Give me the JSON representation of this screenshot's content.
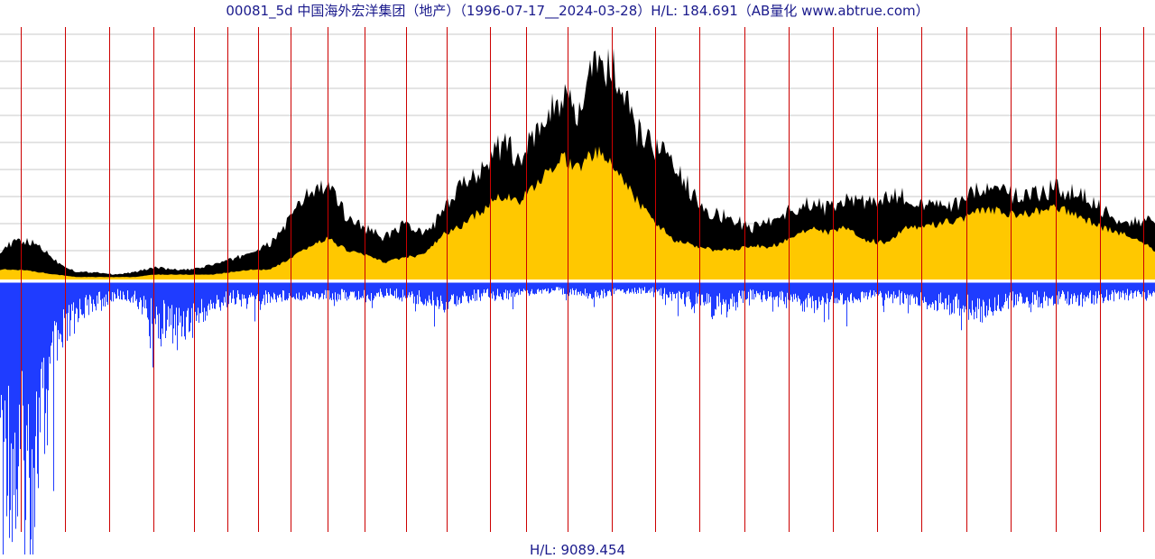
{
  "title": "00081_5d 中国海外宏洋集团（地产）（1996-07-17__2024-03-28）H/L: 184.691（AB量化  www.abtrue.com）",
  "bottom_label": "H/L: 9089.454",
  "colors": {
    "high_band": "#000000",
    "low_area": "#ffc800",
    "volume": "#1f3cff",
    "year_line": "#cc0000",
    "grid": "#c8c8c8",
    "baseline": "#1f3cff",
    "text": "#1a1a8c"
  },
  "chart_data": [
    {
      "type": "area",
      "title": "00081_5d 中国海外宏洋集团（地产）（1996-07-17__2024-03-28）H/L: 184.691（AB量化  www.abtrue.com）",
      "x_range": [
        "1996-07-17",
        "2024-03-28"
      ],
      "y_scale": "log",
      "y_ratio": 184.691,
      "grid": true,
      "series": [
        {
          "values": [
            0.12,
            0.16,
            0.14,
            0.07,
            0.03,
            0.03,
            0.02,
            0.03,
            0.05,
            0.04,
            0.04,
            0.06,
            0.08,
            0.11,
            0.14,
            0.24,
            0.35,
            0.38,
            0.26,
            0.21,
            0.17,
            0.23,
            0.18,
            0.27,
            0.38,
            0.46,
            0.55,
            0.5,
            0.6,
            0.75,
            0.66,
            0.89,
            0.84,
            0.6,
            0.55,
            0.46,
            0.35,
            0.27,
            0.25,
            0.21,
            0.24,
            0.28,
            0.31,
            0.29,
            0.33,
            0.31,
            0.33,
            0.34,
            0.3,
            0.3,
            0.31,
            0.38,
            0.35,
            0.34,
            0.36,
            0.37,
            0.35,
            0.3,
            0.25,
            0.24,
            0.23
          ]
        },
        {
          "values": [
            0.04,
            0.04,
            0.03,
            0.02,
            0.01,
            0.01,
            0.01,
            0.01,
            0.02,
            0.02,
            0.02,
            0.02,
            0.03,
            0.04,
            0.04,
            0.08,
            0.13,
            0.17,
            0.12,
            0.1,
            0.07,
            0.09,
            0.1,
            0.18,
            0.22,
            0.28,
            0.34,
            0.32,
            0.39,
            0.5,
            0.46,
            0.52,
            0.45,
            0.33,
            0.24,
            0.16,
            0.14,
            0.12,
            0.12,
            0.14,
            0.13,
            0.17,
            0.21,
            0.19,
            0.21,
            0.16,
            0.15,
            0.21,
            0.22,
            0.23,
            0.25,
            0.28,
            0.28,
            0.26,
            0.28,
            0.29,
            0.26,
            0.22,
            0.19,
            0.17,
            0.12
          ]
        }
      ]
    },
    {
      "type": "bar",
      "title": "H/L: 9089.454",
      "y_ratio": 9089.454,
      "series": [
        {
          "values": [
            0.58,
            0.95,
            0.7,
            0.3,
            0.12,
            0.08,
            0.05,
            0.06,
            0.16,
            0.18,
            0.16,
            0.1,
            0.06,
            0.07,
            0.06,
            0.05,
            0.05,
            0.05,
            0.05,
            0.06,
            0.04,
            0.05,
            0.07,
            0.08,
            0.06,
            0.05,
            0.05,
            0.04,
            0.03,
            0.03,
            0.04,
            0.05,
            0.03,
            0.03,
            0.03,
            0.05,
            0.08,
            0.1,
            0.08,
            0.05,
            0.06,
            0.08,
            0.09,
            0.06,
            0.07,
            0.05,
            0.05,
            0.07,
            0.08,
            0.09,
            0.1,
            0.12,
            0.08,
            0.07,
            0.07,
            0.06,
            0.07,
            0.06,
            0.05,
            0.05,
            0.04
          ]
        }
      ]
    }
  ]
}
